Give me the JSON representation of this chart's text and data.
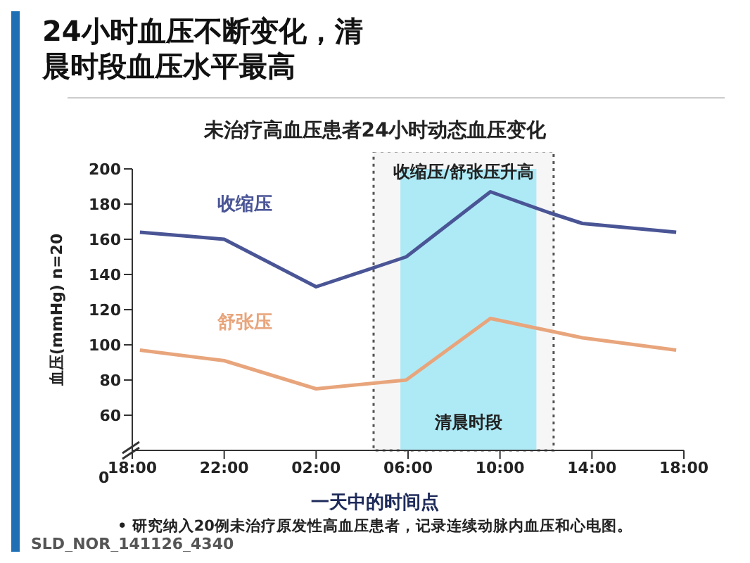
{
  "chart_data": {
    "type": "line",
    "title": "24小时血压不断变化，清晨时段血压水平最高",
    "subtitle": "未治疗高血压患者24小时动态血压变化",
    "xlabel": "一天中的时间点",
    "ylabel": "血压(mmHg) n=20",
    "annotations": [
      "• 研究纳入20例未治疗原发性高血压患者，记录连续动脉内血压和心电图。",
      "SLD_NOR_141126_4340",
      "0"
    ],
    "series": [
      {
        "name": "收缩压",
        "color": "#4a5596",
        "x": [
          "2000-01-01T18:20",
          "2000-01-01T22:00",
          "2000-01-02T02:00",
          "2000-01-02T05:55",
          "2000-01-02T09:35",
          "2000-01-02T12:10",
          "2000-01-02T13:35",
          "2000-01-02T17:40"
        ],
        "values": [
          164,
          160,
          133,
          150,
          187,
          175,
          169,
          164
        ]
      },
      {
        "name": "舒张压",
        "color": "#e8a57c",
        "x": [
          "2000-01-01T18:20",
          "2000-01-01T22:00",
          "2000-01-02T02:00",
          "2000-01-02T05:55",
          "2000-01-02T09:35",
          "2000-01-02T13:35",
          "2000-01-02T17:40"
        ],
        "values": [
          97,
          91,
          75,
          80,
          115,
          104,
          97
        ]
      }
    ],
    "bands": [
      {
        "axis": "x",
        "from": "2000-01-02T05:40",
        "to": "2000-01-02T11:35",
        "label": "清晨时段",
        "color": "#aeeaf6"
      },
      {
        "axis": "x",
        "from": "2000-01-02T04:30",
        "to": "2000-01-02T12:20",
        "label": "收缩压/舒张压升高",
        "color": "#f6f6f6"
      }
    ],
    "xlim": [
      "2000-01-01T18:00",
      "2000-01-02T18:00"
    ],
    "xticks": [
      {
        "value": "2000-01-01T18:00",
        "label": "18:00"
      },
      {
        "value": "2000-01-01T22:00",
        "label": "22:00"
      },
      {
        "value": "2000-01-02T02:00",
        "label": "02:00"
      },
      {
        "value": "2000-01-02T06:00",
        "label": "06:00"
      },
      {
        "value": "2000-01-02T10:00",
        "label": "10:00"
      },
      {
        "value": "2000-01-02T14:00",
        "label": "14:00"
      },
      {
        "value": "2000-01-02T18:00",
        "label": "18:00"
      }
    ],
    "ylim": [
      40,
      200
    ],
    "yticks": [
      60,
      80,
      100,
      120,
      140,
      160,
      180,
      200
    ],
    "marker": "none",
    "line_style": "solid"
  }
}
